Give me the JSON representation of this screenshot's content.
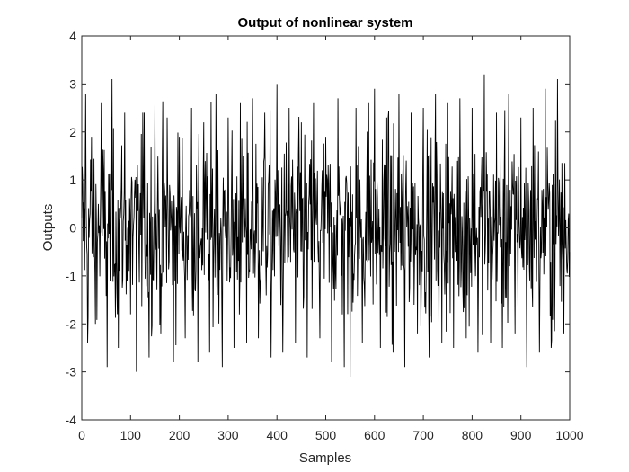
{
  "chart_data": {
    "type": "line",
    "title": "Output of nonlinear system",
    "xlabel": "Samples",
    "ylabel": "Outputs",
    "xlim": [
      0,
      1000
    ],
    "ylim": [
      -4,
      4
    ],
    "xticks": [
      0,
      100,
      200,
      300,
      400,
      500,
      600,
      700,
      800,
      900,
      1000
    ],
    "yticks": [
      -4,
      -3,
      -2,
      -1,
      0,
      1,
      2,
      3,
      4
    ],
    "xtick_labels": [
      "0",
      "100",
      "200",
      "300",
      "400",
      "500",
      "600",
      "700",
      "800",
      "900",
      "1000"
    ],
    "ytick_labels": [
      "-4",
      "-3",
      "-2",
      "-1",
      "0",
      "1",
      "2",
      "3",
      "4"
    ],
    "grid": false,
    "line_color": "#000000",
    "series": [
      {
        "description": "Noise-like output signal, 1000 samples, fluctuating roughly between -3 and 3 around 0 (individual values not legible at this resolution; representative extremes read from the plot)",
        "x": [
          0,
          8,
          12,
          20,
          28,
          40,
          52,
          62,
          75,
          88,
          100,
          112,
          125,
          138,
          150,
          162,
          175,
          188,
          200,
          212,
          225,
          238,
          250,
          262,
          275,
          288,
          300,
          312,
          325,
          338,
          350,
          362,
          375,
          388,
          400,
          412,
          425,
          438,
          450,
          462,
          475,
          488,
          500,
          512,
          525,
          538,
          550,
          562,
          575,
          588,
          600,
          612,
          625,
          638,
          650,
          662,
          675,
          688,
          700,
          712,
          725,
          738,
          750,
          762,
          775,
          788,
          800,
          812,
          825,
          838,
          850,
          862,
          875,
          888,
          900,
          912,
          925,
          938,
          950,
          962,
          975,
          988,
          1000
        ],
        "y": [
          0.2,
          2.8,
          -2.4,
          1.9,
          -2.0,
          2.6,
          -2.9,
          3.1,
          -2.5,
          2.4,
          -1.8,
          -3.0,
          2.4,
          -2.7,
          2.6,
          -2.2,
          2.3,
          -2.8,
          1.9,
          -2.3,
          2.5,
          -2.8,
          2.2,
          -2.6,
          2.8,
          -2.9,
          2.3,
          -2.5,
          2.6,
          -2.4,
          2.7,
          -2.3,
          2.4,
          -2.7,
          3.0,
          -2.6,
          2.5,
          -2.4,
          2.2,
          -2.7,
          2.6,
          -2.3,
          1.9,
          -2.8,
          2.7,
          -2.9,
          -3.1,
          2.5,
          -2.4,
          2.6,
          2.9,
          -2.5,
          2.3,
          -2.6,
          2.8,
          -2.9,
          2.4,
          -2.2,
          2.5,
          -2.7,
          2.8,
          -2.4,
          2.6,
          -2.5,
          2.7,
          -2.3,
          2.5,
          -2.6,
          3.2,
          -2.4,
          2.4,
          -2.5,
          2.8,
          -2.2,
          2.3,
          -2.9,
          2.5,
          -2.6,
          2.9,
          -2.5,
          3.1,
          -2.2,
          -0.5
        ]
      }
    ]
  }
}
